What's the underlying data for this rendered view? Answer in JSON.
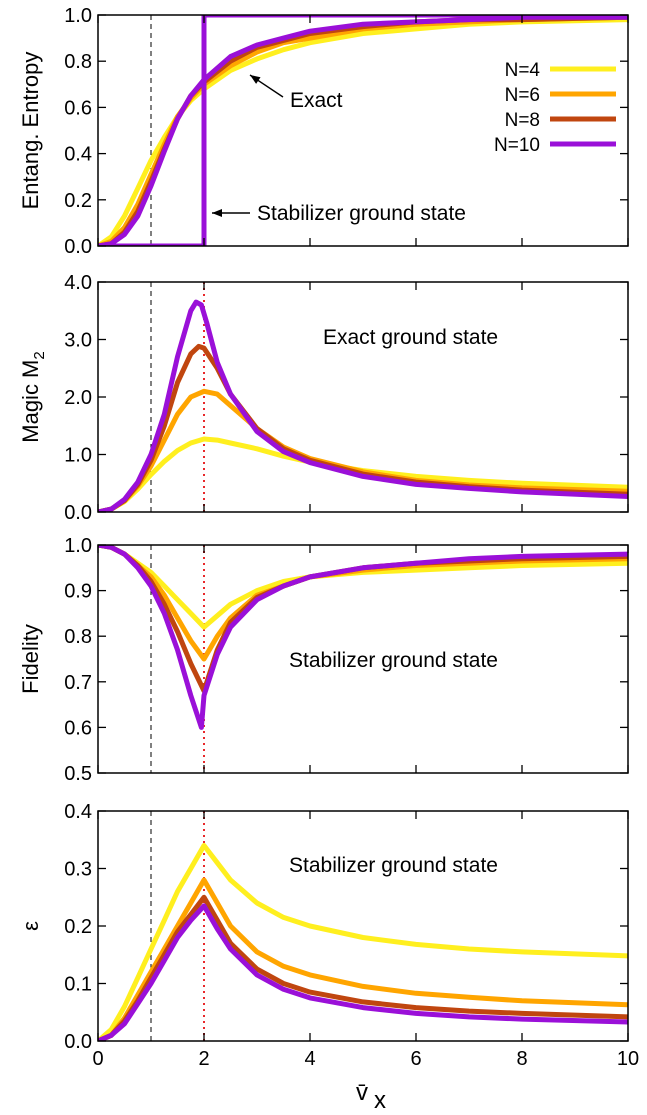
{
  "figure": {
    "x_axis_label": "v̄",
    "x_axis_subscript": "x"
  },
  "legend": {
    "placement": "top-right of top panel",
    "entries": [
      "N=4",
      "N=6",
      "N=8",
      "N=10"
    ]
  },
  "colors": {
    "N=4": "#ffef1f",
    "N=6": "#ffa500",
    "N=8": "#c0460f",
    "N=10": "#9a10d8",
    "guide_black": "#000000",
    "guide_red": "#e8282a"
  },
  "chart_data": [
    {
      "type": "line",
      "panel": "entanglement",
      "ylabel": "Entang. Entropy",
      "xlim": [
        0,
        10
      ],
      "ylim": [
        0,
        1.0
      ],
      "xticks": [
        0,
        2,
        4,
        6,
        8,
        10
      ],
      "yticks": [
        "0.0",
        "0.2",
        "0.4",
        "0.6",
        "0.8",
        "1.0"
      ],
      "show_x_tick_labels": false,
      "guides": [
        {
          "x": 1,
          "style": "black-dashed"
        }
      ],
      "annotations": [
        {
          "text": "Exact",
          "arrow_to": {
            "x": 2.7,
            "y": 0.86
          }
        },
        {
          "text": "Stabilizer ground state",
          "arrow_to": {
            "x": 2.05,
            "y": 0.15
          }
        }
      ],
      "series": [
        {
          "name": "N=4",
          "exact": {
            "x": [
              0,
              0.25,
              0.5,
              0.75,
              1,
              1.25,
              1.5,
              1.75,
              2,
              2.5,
              3,
              3.5,
              4,
              5,
              6,
              7,
              8,
              10
            ],
            "y": [
              0,
              0.04,
              0.13,
              0.25,
              0.37,
              0.47,
              0.56,
              0.63,
              0.68,
              0.76,
              0.81,
              0.85,
              0.88,
              0.92,
              0.94,
              0.96,
              0.97,
              0.98
            ]
          },
          "stabilizer": {
            "x": [
              0,
              2,
              2,
              10
            ],
            "y": [
              0,
              0,
              1,
              1
            ]
          }
        },
        {
          "name": "N=6",
          "exact": {
            "x": [
              0,
              0.25,
              0.5,
              0.75,
              1,
              1.25,
              1.5,
              1.75,
              2,
              2.5,
              3,
              3.5,
              4,
              5,
              6,
              7,
              8,
              10
            ],
            "y": [
              0,
              0.02,
              0.08,
              0.18,
              0.31,
              0.44,
              0.56,
              0.64,
              0.7,
              0.78,
              0.84,
              0.88,
              0.9,
              0.94,
              0.96,
              0.97,
              0.98,
              0.99
            ]
          },
          "stabilizer": {
            "x": [
              0,
              2,
              2,
              10
            ],
            "y": [
              0,
              0,
              1,
              1
            ]
          }
        },
        {
          "name": "N=8",
          "exact": {
            "x": [
              0,
              0.25,
              0.5,
              0.75,
              1,
              1.25,
              1.5,
              1.75,
              2,
              2.5,
              3,
              3.5,
              4,
              5,
              6,
              7,
              8,
              10
            ],
            "y": [
              0,
              0.01,
              0.06,
              0.15,
              0.28,
              0.42,
              0.55,
              0.65,
              0.71,
              0.8,
              0.86,
              0.89,
              0.92,
              0.95,
              0.97,
              0.98,
              0.98,
              0.99
            ]
          },
          "stabilizer": {
            "x": [
              0,
              2,
              2,
              10
            ],
            "y": [
              0,
              0,
              1,
              1
            ]
          }
        },
        {
          "name": "N=10",
          "exact": {
            "x": [
              0,
              0.25,
              0.5,
              0.75,
              1,
              1.25,
              1.5,
              1.75,
              2,
              2.5,
              3,
              3.5,
              4,
              5,
              6,
              7,
              8,
              10
            ],
            "y": [
              0,
              0.01,
              0.05,
              0.13,
              0.26,
              0.41,
              0.55,
              0.65,
              0.72,
              0.82,
              0.87,
              0.9,
              0.93,
              0.96,
              0.97,
              0.98,
              0.99,
              0.99
            ]
          },
          "stabilizer": {
            "x": [
              0,
              2,
              2,
              10
            ],
            "y": [
              0,
              0,
              1,
              1
            ]
          }
        }
      ]
    },
    {
      "type": "line",
      "panel": "magic",
      "ylabel": "Magic M",
      "ylabel_subscript": "2",
      "xlim": [
        0,
        10
      ],
      "ylim": [
        0,
        4.0
      ],
      "xticks": [
        0,
        2,
        4,
        6,
        8,
        10
      ],
      "yticks": [
        "0.0",
        "1.0",
        "2.0",
        "3.0",
        "4.0"
      ],
      "show_x_tick_labels": false,
      "guides": [
        {
          "x": 1,
          "style": "black-dashed"
        },
        {
          "x": 2,
          "style": "red-dotted"
        }
      ],
      "annotations": [
        {
          "text": "Exact ground state"
        }
      ],
      "series": [
        {
          "name": "N=4",
          "x": [
            0,
            0.25,
            0.5,
            0.75,
            1,
            1.25,
            1.5,
            1.75,
            2,
            2.25,
            2.5,
            3,
            3.5,
            4,
            5,
            6,
            7,
            8,
            10
          ],
          "y": [
            0,
            0.05,
            0.18,
            0.4,
            0.65,
            0.88,
            1.07,
            1.2,
            1.27,
            1.25,
            1.2,
            1.1,
            0.97,
            0.87,
            0.72,
            0.62,
            0.55,
            0.5,
            0.43
          ]
        },
        {
          "name": "N=6",
          "x": [
            0,
            0.25,
            0.5,
            0.75,
            1,
            1.25,
            1.5,
            1.75,
            2,
            2.25,
            2.5,
            3,
            3.5,
            4,
            5,
            6,
            7,
            8,
            10
          ],
          "y": [
            0,
            0.05,
            0.2,
            0.45,
            0.8,
            1.25,
            1.7,
            2.0,
            2.1,
            2.05,
            1.85,
            1.45,
            1.13,
            0.93,
            0.7,
            0.55,
            0.47,
            0.42,
            0.36
          ]
        },
        {
          "name": "N=8",
          "x": [
            0,
            0.25,
            0.5,
            0.75,
            1,
            1.25,
            1.5,
            1.75,
            1.9,
            2,
            2.25,
            2.5,
            3,
            3.5,
            4,
            5,
            6,
            7,
            8,
            10
          ],
          "y": [
            0,
            0.05,
            0.2,
            0.48,
            0.9,
            1.5,
            2.25,
            2.75,
            2.88,
            2.85,
            2.5,
            2.05,
            1.45,
            1.1,
            0.9,
            0.66,
            0.52,
            0.44,
            0.38,
            0.31
          ]
        },
        {
          "name": "N=10",
          "x": [
            0,
            0.25,
            0.5,
            0.75,
            1,
            1.25,
            1.5,
            1.75,
            1.85,
            1.95,
            2.05,
            2.25,
            2.5,
            3,
            3.5,
            4,
            5,
            6,
            7,
            8,
            10
          ],
          "y": [
            0,
            0.05,
            0.22,
            0.52,
            1.0,
            1.7,
            2.7,
            3.5,
            3.65,
            3.6,
            3.3,
            2.6,
            2.05,
            1.4,
            1.05,
            0.86,
            0.62,
            0.48,
            0.41,
            0.35,
            0.27
          ]
        }
      ]
    },
    {
      "type": "line",
      "panel": "fidelity",
      "ylabel": "Fidelity",
      "xlim": [
        0,
        10
      ],
      "ylim": [
        0.5,
        1.0
      ],
      "xticks": [
        0,
        2,
        4,
        6,
        8,
        10
      ],
      "yticks": [
        "0.5",
        "0.6",
        "0.7",
        "0.8",
        "0.9",
        "1.0"
      ],
      "show_x_tick_labels": false,
      "guides": [
        {
          "x": 1,
          "style": "black-dashed"
        },
        {
          "x": 2,
          "style": "red-dotted"
        }
      ],
      "annotations": [
        {
          "text": "Stabilizer ground state"
        }
      ],
      "series": [
        {
          "name": "N=4",
          "x": [
            0,
            0.25,
            0.5,
            0.75,
            1,
            1.25,
            1.5,
            1.75,
            2,
            2.25,
            2.5,
            3,
            3.5,
            4,
            5,
            6,
            7,
            8,
            10
          ],
          "y": [
            1,
            0.995,
            0.98,
            0.96,
            0.94,
            0.91,
            0.88,
            0.85,
            0.82,
            0.845,
            0.87,
            0.9,
            0.92,
            0.93,
            0.94,
            0.945,
            0.95,
            0.955,
            0.96
          ]
        },
        {
          "name": "N=6",
          "x": [
            0,
            0.25,
            0.5,
            0.75,
            1,
            1.25,
            1.5,
            1.75,
            2,
            2.25,
            2.5,
            3,
            3.5,
            4,
            5,
            6,
            7,
            8,
            10
          ],
          "y": [
            1,
            0.995,
            0.98,
            0.955,
            0.93,
            0.89,
            0.84,
            0.79,
            0.75,
            0.8,
            0.84,
            0.89,
            0.91,
            0.93,
            0.945,
            0.955,
            0.96,
            0.965,
            0.97
          ]
        },
        {
          "name": "N=8",
          "x": [
            0,
            0.25,
            0.5,
            0.75,
            1,
            1.25,
            1.5,
            1.75,
            2,
            2.25,
            2.5,
            3,
            3.5,
            4,
            5,
            6,
            7,
            8,
            10
          ],
          "y": [
            1,
            0.995,
            0.98,
            0.955,
            0.92,
            0.87,
            0.81,
            0.74,
            0.68,
            0.77,
            0.83,
            0.885,
            0.91,
            0.93,
            0.95,
            0.96,
            0.965,
            0.97,
            0.975
          ]
        },
        {
          "name": "N=10",
          "x": [
            0,
            0.25,
            0.5,
            0.75,
            1,
            1.25,
            1.5,
            1.75,
            1.95,
            2,
            2.25,
            2.5,
            3,
            3.5,
            4,
            5,
            6,
            7,
            8,
            10
          ],
          "y": [
            1,
            0.995,
            0.98,
            0.95,
            0.91,
            0.85,
            0.77,
            0.67,
            0.6,
            0.67,
            0.76,
            0.82,
            0.88,
            0.91,
            0.93,
            0.95,
            0.96,
            0.97,
            0.975,
            0.98
          ]
        }
      ]
    },
    {
      "type": "line",
      "panel": "epsilon",
      "ylabel": "ε",
      "xlim": [
        0,
        10
      ],
      "ylim": [
        0,
        0.4
      ],
      "xticks": [
        0,
        2,
        4,
        6,
        8,
        10
      ],
      "yticks": [
        "0.0",
        "0.1",
        "0.2",
        "0.3",
        "0.4"
      ],
      "xtick_labels": [
        "0",
        "2",
        "4",
        "6",
        "8",
        "10"
      ],
      "show_x_tick_labels": true,
      "guides": [
        {
          "x": 1,
          "style": "black-dashed"
        },
        {
          "x": 2,
          "style": "red-dotted"
        }
      ],
      "annotations": [
        {
          "text": "Stabilizer ground state"
        }
      ],
      "series": [
        {
          "name": "N=4",
          "x": [
            0,
            0.25,
            0.5,
            0.75,
            1,
            1.25,
            1.5,
            1.75,
            2,
            2.25,
            2.5,
            3,
            3.5,
            4,
            5,
            6,
            7,
            8,
            10
          ],
          "y": [
            0,
            0.02,
            0.06,
            0.11,
            0.16,
            0.21,
            0.26,
            0.3,
            0.34,
            0.31,
            0.28,
            0.24,
            0.215,
            0.2,
            0.18,
            0.168,
            0.16,
            0.155,
            0.148
          ]
        },
        {
          "name": "N=6",
          "x": [
            0,
            0.25,
            0.5,
            0.75,
            1,
            1.25,
            1.5,
            1.75,
            2,
            2.25,
            2.5,
            3,
            3.5,
            4,
            5,
            6,
            7,
            8,
            10
          ],
          "y": [
            0,
            0.01,
            0.04,
            0.08,
            0.12,
            0.16,
            0.2,
            0.24,
            0.28,
            0.24,
            0.2,
            0.155,
            0.13,
            0.115,
            0.095,
            0.083,
            0.076,
            0.07,
            0.063
          ]
        },
        {
          "name": "N=8",
          "x": [
            0,
            0.25,
            0.5,
            0.75,
            1,
            1.25,
            1.5,
            1.75,
            2,
            2.25,
            2.5,
            3,
            3.5,
            4,
            5,
            6,
            7,
            8,
            10
          ],
          "y": [
            0,
            0.01,
            0.035,
            0.07,
            0.11,
            0.15,
            0.19,
            0.22,
            0.25,
            0.21,
            0.17,
            0.125,
            0.1,
            0.085,
            0.068,
            0.058,
            0.052,
            0.048,
            0.042
          ]
        },
        {
          "name": "N=10",
          "x": [
            0,
            0.25,
            0.5,
            0.75,
            1,
            1.25,
            1.5,
            1.75,
            2,
            2.25,
            2.5,
            3,
            3.5,
            4,
            5,
            6,
            7,
            8,
            10
          ],
          "y": [
            0,
            0.01,
            0.03,
            0.065,
            0.1,
            0.14,
            0.18,
            0.21,
            0.235,
            0.195,
            0.16,
            0.115,
            0.09,
            0.075,
            0.058,
            0.048,
            0.042,
            0.038,
            0.033
          ]
        }
      ]
    }
  ]
}
